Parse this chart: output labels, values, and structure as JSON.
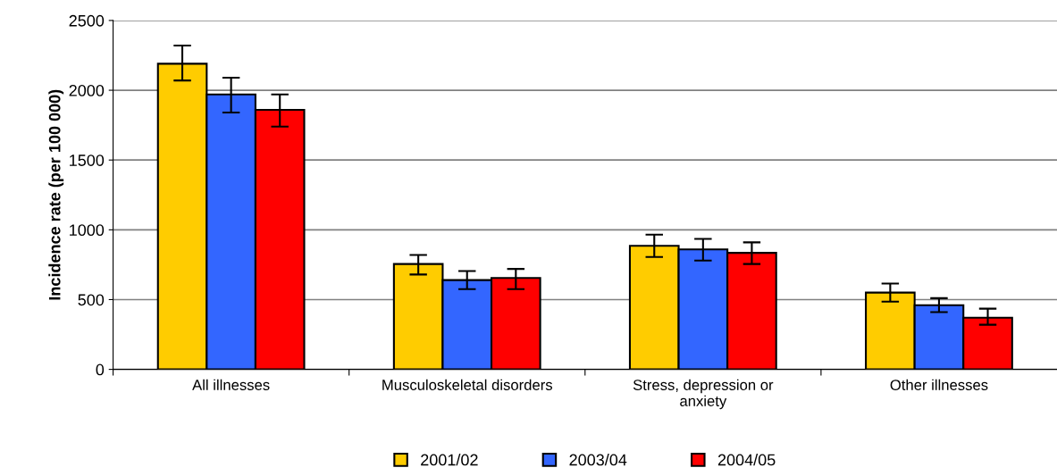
{
  "chart_data": {
    "type": "bar",
    "ylabel": "Incidence rate (per 100 000)",
    "categories": [
      "All illnesses",
      "Musculoskeletal disorders",
      "Stress, depression or\nanxiety",
      "Other illnesses"
    ],
    "series": [
      {
        "name": "2001/02",
        "color": "#ffcc00",
        "values": [
          2190,
          755,
          885,
          550
        ],
        "errors": [
          [
            2070,
            2320
          ],
          [
            680,
            820
          ],
          [
            805,
            965
          ],
          [
            485,
            615
          ]
        ]
      },
      {
        "name": "2003/04",
        "color": "#3366ff",
        "values": [
          1970,
          640,
          860,
          460
        ],
        "errors": [
          [
            1840,
            2090
          ],
          [
            575,
            705
          ],
          [
            780,
            935
          ],
          [
            410,
            510
          ]
        ]
      },
      {
        "name": "2004/05",
        "color": "#ff0000",
        "values": [
          1860,
          655,
          835,
          370
        ],
        "errors": [
          [
            1740,
            1970
          ],
          [
            575,
            720
          ],
          [
            755,
            910
          ],
          [
            320,
            435
          ]
        ]
      }
    ],
    "ylim": [
      0,
      2500
    ],
    "yticks": [
      0,
      500,
      1000,
      1500,
      2000,
      2500
    ],
    "grid": "y",
    "legend": "bottom"
  }
}
